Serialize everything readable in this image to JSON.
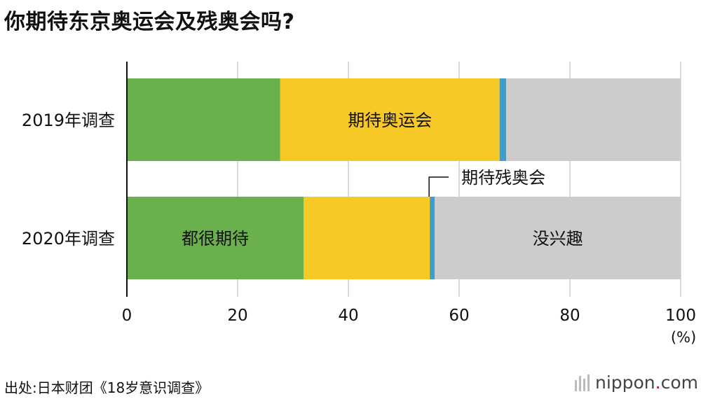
{
  "title": "你期待东京奥运会及残奥会吗?",
  "source": "出处:日本财团《18岁意识调查》",
  "logo": {
    "main": "nippon",
    "dot": ".",
    "tld": "com"
  },
  "chart_data": {
    "type": "bar",
    "orientation": "horizontal",
    "stacked": true,
    "categories": [
      "2019年调查",
      "2020年调查"
    ],
    "series": [
      {
        "name": "都很期待",
        "values": [
          27.7,
          31.9
        ],
        "color": "#6ab04c"
      },
      {
        "name": "期待奥运会",
        "values": [
          39.6,
          22.8
        ],
        "color": "#f7c927"
      },
      {
        "name": "期待残奥会",
        "values": [
          1.2,
          0.9
        ],
        "color": "#3d9fcb"
      },
      {
        "name": "没兴趣",
        "values": [
          31.5,
          44.4
        ],
        "color": "#cccccc"
      }
    ],
    "xlim": [
      0,
      100
    ],
    "xticks": [
      "0",
      "20",
      "40",
      "60",
      "80",
      "100"
    ],
    "xunit": "(%)",
    "grid": true,
    "inline_labels": [
      {
        "series": 1,
        "category": 0,
        "text": "期待奥运会"
      },
      {
        "series": 0,
        "category": 1,
        "text": "都很期待"
      },
      {
        "series": 3,
        "category": 1,
        "text": "没兴趣"
      },
      {
        "series": 2,
        "category": 1,
        "text": "期待残奥会",
        "callout": true
      }
    ]
  }
}
